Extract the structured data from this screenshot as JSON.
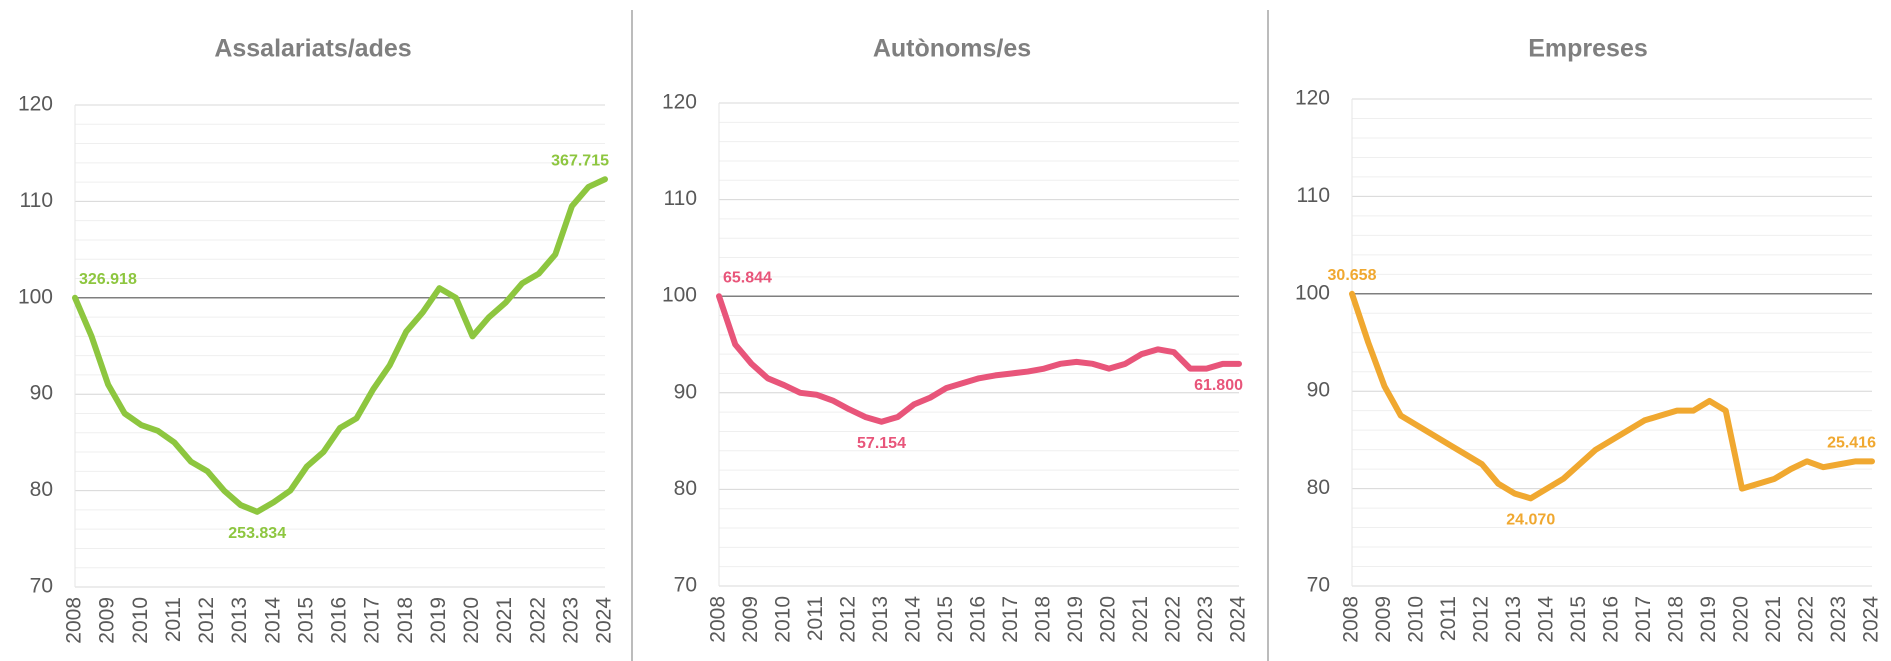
{
  "chart_data": [
    {
      "type": "line",
      "title": "Assalariats/ades",
      "color": "#8dc63f",
      "x": [
        2008,
        2008.5,
        2009,
        2009.5,
        2010,
        2010.5,
        2011,
        2011.5,
        2012,
        2012.5,
        2013,
        2013.5,
        2014,
        2014.5,
        2015,
        2015.5,
        2016,
        2016.5,
        2017,
        2017.5,
        2018,
        2018.5,
        2019,
        2019.5,
        2020,
        2020.5,
        2021,
        2021.5,
        2022,
        2022.5,
        2023,
        2023.5,
        2024
      ],
      "values": [
        100,
        96,
        91,
        88,
        86.8,
        86.2,
        85,
        83,
        82,
        80,
        78.5,
        77.8,
        78.8,
        80,
        82.5,
        84,
        86.5,
        87.5,
        90.5,
        93,
        96.5,
        98.5,
        101,
        100,
        96,
        98,
        99.5,
        101.5,
        102.5,
        104.5,
        109.5,
        111.5,
        112.3
      ],
      "xlim": [
        2008,
        2024
      ],
      "xticks": [
        2008,
        2009,
        2010,
        2011,
        2012,
        2013,
        2014,
        2015,
        2016,
        2017,
        2018,
        2019,
        2020,
        2021,
        2022,
        2023,
        2024
      ],
      "ylim": [
        70,
        120
      ],
      "yticks": [
        70,
        80,
        90,
        100,
        110,
        120
      ],
      "grid": true,
      "minor_grid_step": 2,
      "reference_line": 100,
      "annotations": [
        {
          "text": "326.918",
          "x": 2008,
          "y": 100,
          "position": "above-right"
        },
        {
          "text": "253.834",
          "x": 2013.5,
          "y": 77.8,
          "position": "below"
        },
        {
          "text": "367.715",
          "x": 2024,
          "y": 112.3,
          "position": "above-left"
        }
      ]
    },
    {
      "type": "line",
      "title": "Autònoms/es",
      "color": "#e8557a",
      "x": [
        2008,
        2008.5,
        2009,
        2009.5,
        2010,
        2010.5,
        2011,
        2011.5,
        2012,
        2012.5,
        2013,
        2013.5,
        2014,
        2014.5,
        2015,
        2015.5,
        2016,
        2016.5,
        2017,
        2017.5,
        2018,
        2018.5,
        2019,
        2019.5,
        2020,
        2020.5,
        2021,
        2021.5,
        2022,
        2022.5,
        2023,
        2023.5,
        2024
      ],
      "values": [
        100,
        95,
        93,
        91.5,
        90.8,
        90,
        89.8,
        89.2,
        88.3,
        87.5,
        87,
        87.5,
        88.8,
        89.5,
        90.5,
        91,
        91.5,
        91.8,
        92,
        92.2,
        92.5,
        93,
        93.2,
        93,
        92.5,
        93,
        94,
        94.5,
        94.2,
        92.5,
        92.5,
        93,
        93
      ],
      "xlim": [
        2008,
        2024
      ],
      "xticks": [
        2008,
        2009,
        2010,
        2011,
        2012,
        2013,
        2014,
        2015,
        2016,
        2017,
        2018,
        2019,
        2020,
        2021,
        2022,
        2023,
        2024
      ],
      "ylim": [
        70,
        120
      ],
      "yticks": [
        70,
        80,
        90,
        100,
        110,
        120
      ],
      "grid": true,
      "minor_grid_step": 2,
      "reference_line": 100,
      "annotations": [
        {
          "text": "65.844",
          "x": 2008,
          "y": 100,
          "position": "above-right"
        },
        {
          "text": "57.154",
          "x": 2013,
          "y": 87,
          "position": "below"
        },
        {
          "text": "61.800",
          "x": 2024,
          "y": 93,
          "position": "below-left"
        }
      ]
    },
    {
      "type": "line",
      "title": "Empreses",
      "color": "#f0a830",
      "x": [
        2008,
        2008.5,
        2009,
        2009.5,
        2010,
        2010.5,
        2011,
        2011.5,
        2012,
        2012.5,
        2013,
        2013.5,
        2014,
        2014.5,
        2015,
        2015.5,
        2016,
        2016.5,
        2017,
        2017.5,
        2018,
        2018.5,
        2019,
        2019.5,
        2020,
        2020.5,
        2021,
        2021.5,
        2022,
        2022.5,
        2023,
        2023.5,
        2024
      ],
      "values": [
        100,
        95,
        90.5,
        87.5,
        86.5,
        85.5,
        84.5,
        83.5,
        82.5,
        80.5,
        79.5,
        79,
        80,
        81,
        82.5,
        84,
        85,
        86,
        87,
        87.5,
        88,
        88,
        89,
        88,
        80,
        80.5,
        81,
        82,
        82.8,
        82.2,
        82.5,
        82.8,
        82.8
      ],
      "xlim": [
        2008,
        2024
      ],
      "xticks": [
        2008,
        2009,
        2010,
        2011,
        2012,
        2013,
        2014,
        2015,
        2016,
        2017,
        2018,
        2019,
        2020,
        2021,
        2022,
        2023,
        2024
      ],
      "ylim": [
        70,
        120
      ],
      "yticks": [
        70,
        80,
        90,
        100,
        110,
        120
      ],
      "grid": true,
      "minor_grid_step": 2,
      "reference_line": 100,
      "annotations": [
        {
          "text": "30.658",
          "x": 2008,
          "y": 100,
          "position": "above"
        },
        {
          "text": "24.070",
          "x": 2013.5,
          "y": 79,
          "position": "below"
        },
        {
          "text": "25.416",
          "x": 2024,
          "y": 82.8,
          "position": "above-left"
        }
      ]
    }
  ]
}
